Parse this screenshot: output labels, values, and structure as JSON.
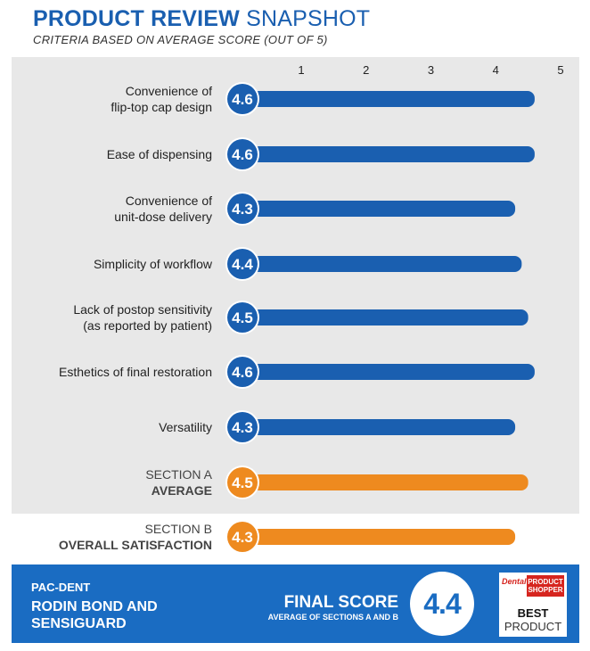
{
  "header": {
    "title_bold": "PRODUCT REVIEW",
    "title_light": "SNAPSHOT",
    "subtitle": "CRITERIA BASED ON AVERAGE SCORE (OUT OF 5)"
  },
  "chart_data": {
    "type": "bar",
    "orientation": "horizontal",
    "xlim": [
      0,
      5
    ],
    "ticks": [
      "1",
      "2",
      "3",
      "4",
      "5"
    ],
    "grid": false,
    "categories": [
      "Convenience of flip-top cap design",
      "Ease of dispensing",
      "Convenience of unit-dose delivery",
      "Simplicity of workflow",
      "Lack of postop sensitivity (as reported by patient)",
      "Esthetics of final restoration",
      "Versatility",
      "SECTION A AVERAGE",
      "SECTION B OVERALL SATISFACTION"
    ],
    "values": [
      4.6,
      4.6,
      4.3,
      4.4,
      4.5,
      4.6,
      4.3,
      4.5,
      4.3
    ],
    "value_labels": [
      "4.6",
      "4.6",
      "4.3",
      "4.4",
      "4.5",
      "4.6",
      "4.3",
      "4.5",
      "4.3"
    ],
    "label_lines": [
      [
        "Convenience of",
        "flip-top cap design"
      ],
      [
        "Ease of dispensing"
      ],
      [
        "Convenience of",
        "unit-dose delivery"
      ],
      [
        "Simplicity of workflow"
      ],
      [
        "Lack of postop sensitivity",
        "(as reported by patient)"
      ],
      [
        "Esthetics of final restoration"
      ],
      [
        "Versatility"
      ],
      [
        "SECTION A",
        "AVERAGE"
      ],
      [
        "SECTION B",
        "OVERALL SATISFACTION"
      ]
    ],
    "bar_kinds": [
      "criterion",
      "criterion",
      "criterion",
      "criterion",
      "criterion",
      "criterion",
      "criterion",
      "section",
      "section"
    ],
    "colors": {
      "criterion": "#1a5fb0",
      "section": "#ee8a1f",
      "badge_outline": "#ffffff",
      "panel": "#e8e8e8"
    }
  },
  "footer": {
    "maker": "PAC-DENT",
    "product_name": "RODIN BOND AND SENSIGUARD",
    "final_score_label": "FINAL SCORE",
    "final_score_sub": "AVERAGE OF SECTIONS A AND B",
    "final_score_value": "4.4",
    "colors": {
      "band": "#1a6cc2"
    }
  },
  "award": {
    "brand_top": "Dental",
    "brand_box": "PRODUCT SHOPPER",
    "line1": "BEST",
    "line2": "PRODUCT"
  }
}
